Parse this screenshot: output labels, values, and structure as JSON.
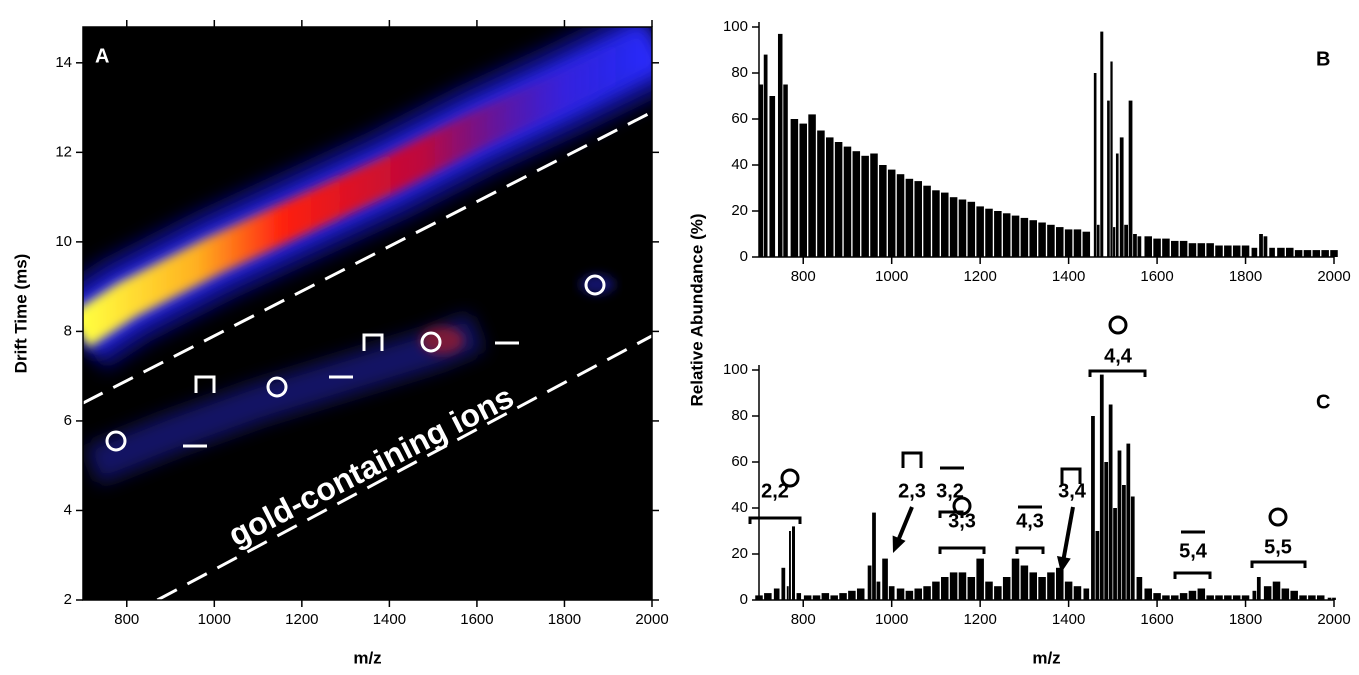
{
  "chart_data": [
    {
      "type": "heatmap",
      "panel_label": "A",
      "xlabel": "m/z",
      "ylabel": "Drift Time (ms)",
      "xlim": [
        700,
        2000
      ],
      "ylim": [
        2,
        14.8
      ],
      "xticks": [
        800,
        1000,
        1200,
        1400,
        1600,
        1800,
        2000
      ],
      "yticks": [
        2,
        4,
        6,
        8,
        10,
        12,
        14
      ],
      "annotation": "gold-containing ions"
    },
    {
      "type": "stick",
      "panel_label": "B",
      "ylabel": "Relative Abundance (%)",
      "color": "#000000",
      "xlim": [
        700,
        2000
      ],
      "ylim": [
        0,
        100
      ],
      "xticks": [
        800,
        1000,
        1200,
        1400,
        1600,
        1800,
        2000
      ],
      "yticks": [
        0,
        20,
        40,
        60,
        80,
        100
      ],
      "x": [
        705,
        715,
        730,
        748,
        760,
        780,
        800,
        820,
        840,
        860,
        880,
        900,
        920,
        940,
        960,
        980,
        1000,
        1020,
        1040,
        1060,
        1080,
        1100,
        1120,
        1140,
        1160,
        1180,
        1200,
        1220,
        1240,
        1260,
        1280,
        1300,
        1320,
        1340,
        1360,
        1380,
        1400,
        1420,
        1440,
        1460,
        1467,
        1475,
        1490,
        1497,
        1503,
        1510,
        1520,
        1530,
        1540,
        1550,
        1560,
        1580,
        1600,
        1620,
        1640,
        1660,
        1680,
        1700,
        1720,
        1740,
        1760,
        1780,
        1800,
        1820,
        1835,
        1845,
        1860,
        1880,
        1900,
        1920,
        1940,
        1960,
        1980,
        2000
      ],
      "values": [
        75,
        88,
        70,
        97,
        75,
        60,
        58,
        62,
        55,
        52,
        50,
        48,
        46,
        44,
        45,
        40,
        38,
        36,
        34,
        33,
        31,
        29,
        28,
        26,
        25,
        24,
        22,
        21,
        20,
        19,
        18,
        17,
        16,
        15,
        14,
        13,
        12,
        12,
        11,
        80,
        14,
        98,
        68,
        85,
        13,
        45,
        52,
        14,
        68,
        10,
        9,
        9,
        8,
        8,
        7,
        7,
        6,
        6,
        6,
        5,
        5,
        5,
        5,
        4,
        10,
        9,
        4,
        4,
        4,
        3,
        3,
        3,
        3,
        3
      ]
    },
    {
      "type": "stick",
      "panel_label": "C",
      "xlabel": "m/z",
      "color": "#000000",
      "xlim": [
        700,
        2000
      ],
      "ylim": [
        0,
        100
      ],
      "xticks": [
        800,
        1000,
        1200,
        1400,
        1600,
        1800,
        2000
      ],
      "yticks": [
        0,
        20,
        40,
        60,
        80,
        100
      ],
      "x": [
        700,
        720,
        740,
        755,
        765,
        770,
        778,
        790,
        810,
        830,
        850,
        870,
        890,
        910,
        930,
        950,
        960,
        970,
        985,
        1000,
        1020,
        1040,
        1060,
        1080,
        1100,
        1120,
        1140,
        1160,
        1180,
        1200,
        1220,
        1240,
        1260,
        1280,
        1300,
        1320,
        1340,
        1360,
        1380,
        1400,
        1420,
        1440,
        1455,
        1465,
        1475,
        1485,
        1495,
        1505,
        1515,
        1525,
        1535,
        1545,
        1560,
        1580,
        1600,
        1620,
        1640,
        1660,
        1680,
        1700,
        1720,
        1740,
        1760,
        1780,
        1800,
        1820,
        1830,
        1850,
        1870,
        1890,
        1910,
        1930,
        1950,
        1970,
        1990,
        2000
      ],
      "values": [
        2,
        3,
        5,
        14,
        6,
        30,
        32,
        3,
        2,
        2,
        3,
        2,
        3,
        4,
        5,
        15,
        38,
        8,
        18,
        6,
        5,
        4,
        5,
        6,
        8,
        10,
        12,
        12,
        10,
        18,
        8,
        6,
        10,
        18,
        15,
        12,
        10,
        12,
        14,
        8,
        6,
        5,
        80,
        30,
        98,
        60,
        85,
        40,
        65,
        50,
        68,
        45,
        10,
        5,
        3,
        2,
        2,
        3,
        4,
        5,
        2,
        2,
        2,
        2,
        2,
        4,
        10,
        6,
        8,
        5,
        4,
        2,
        2,
        2,
        1,
        1
      ],
      "annotations": [
        "2,2",
        "3,2",
        "2,3",
        "3,3",
        "4,3",
        "3,4",
        "4,4",
        "5,4",
        "5,5"
      ]
    }
  ]
}
